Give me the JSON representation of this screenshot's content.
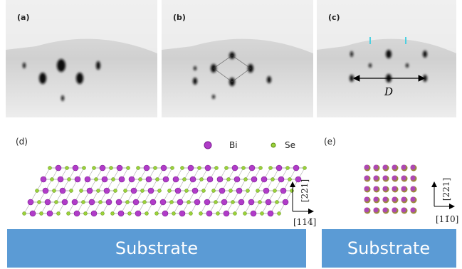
{
  "rheed": [
    {
      "label": "(a)"
    },
    {
      "label": "(b)"
    },
    {
      "label": "(c)",
      "distance_label": "D"
    }
  ],
  "structure": {
    "label": "(d)",
    "legend": [
      {
        "name": "Bi"
      },
      {
        "name": "Se"
      }
    ],
    "axes": {
      "vertical": "[221]",
      "horizontal": "[114̄]"
    },
    "substrate": "Substrate"
  },
  "cross_section": {
    "label": "(e)",
    "axes": {
      "vertical": "[221]",
      "horizontal": "[11̄0]"
    },
    "substrate": "Substrate"
  }
}
